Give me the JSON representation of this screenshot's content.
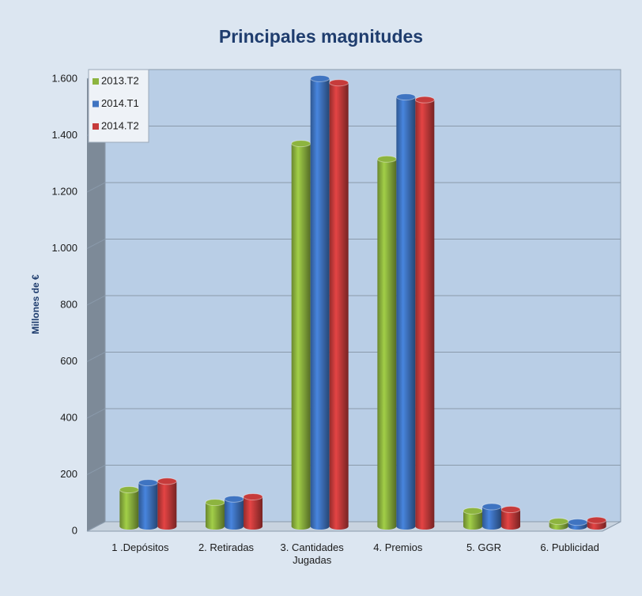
{
  "chart_data": {
    "type": "bar3d",
    "title": "Principales magnitudes",
    "ylabel": "Millones de €",
    "categories": [
      "1 .Depósitos",
      "2. Retiradas",
      "3. Cantidades Jugadas",
      "4. Premios",
      "5. GGR",
      "6. Publicidad"
    ],
    "series": [
      {
        "name": "2013.T2",
        "color": "#8db43f",
        "values": [
          130,
          85,
          1355,
          1300,
          55,
          18
        ]
      },
      {
        "name": "2014.T1",
        "color": "#3f74c1",
        "values": [
          155,
          97,
          1585,
          1520,
          70,
          15
        ]
      },
      {
        "name": "2014.T2",
        "color": "#c63b3b",
        "values": [
          160,
          105,
          1570,
          1510,
          60,
          22
        ]
      }
    ],
    "ylim": [
      0,
      1600
    ],
    "yticks": [
      0,
      200,
      400,
      600,
      800,
      {
        "value": 1000,
        "label": "1.000"
      },
      {
        "value": 1200,
        "label": "1.200"
      },
      {
        "value": 1400,
        "label": "1.400"
      },
      {
        "value": 1600,
        "label": "1.600"
      }
    ],
    "grid": true,
    "legend": "top-left"
  }
}
